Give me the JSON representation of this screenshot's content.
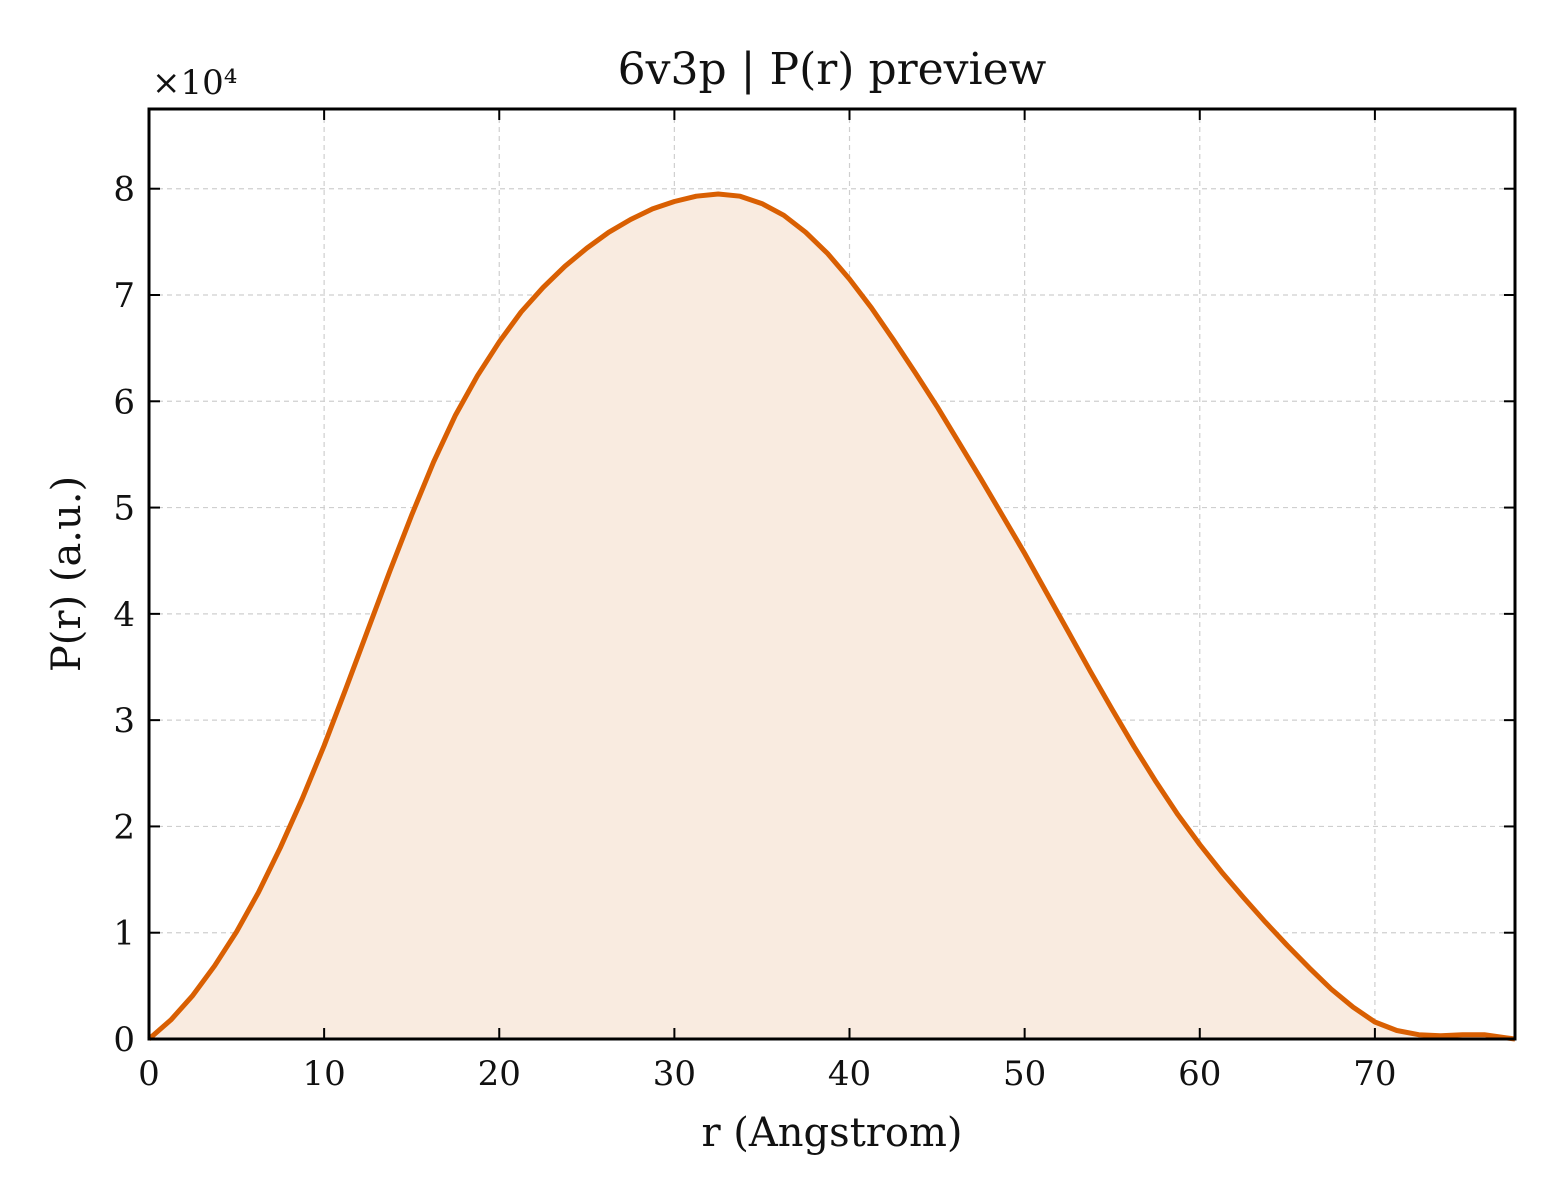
{
  "chart_data": {
    "type": "area",
    "title": "6v3p | P(r) preview",
    "xlabel": "r (Angstrom)",
    "ylabel": "P(r) (a.u.)",
    "y_offset_label": "×10⁴",
    "xlim": [
      0,
      78
    ],
    "ylim": [
      0,
      8.75
    ],
    "y_scale_exponent": 4,
    "xticks": [
      0,
      10,
      20,
      30,
      40,
      50,
      60,
      70
    ],
    "yticks": [
      0,
      1,
      2,
      3,
      4,
      5,
      6,
      7,
      8
    ],
    "grid": true,
    "line_color": "#d95f02",
    "fill_color": "#f9ebe0",
    "series": [
      {
        "x": [
          0,
          1.25,
          2.5,
          3.75,
          5,
          6.25,
          7.5,
          8.75,
          10,
          11.25,
          12.5,
          13.75,
          15,
          16.25,
          17.5,
          18.75,
          20,
          21.25,
          22.5,
          23.75,
          25,
          26.25,
          27.5,
          28.75,
          30,
          31.25,
          32.5,
          33.75,
          35,
          36.25,
          37.5,
          38.75,
          40,
          41.25,
          42.5,
          43.75,
          45,
          46.25,
          47.5,
          48.75,
          50,
          51.25,
          52.5,
          53.75,
          55,
          56.25,
          57.5,
          58.75,
          60,
          61.25,
          62.5,
          63.75,
          65,
          66.25,
          67.5,
          68.75,
          70,
          71.25,
          72.5,
          73.75,
          75,
          76.25,
          77.5,
          78
        ],
        "values": [
          0.0,
          0.18,
          0.41,
          0.69,
          1.01,
          1.38,
          1.8,
          2.26,
          2.76,
          3.3,
          3.85,
          4.4,
          4.93,
          5.43,
          5.87,
          6.24,
          6.56,
          6.84,
          7.07,
          7.27,
          7.44,
          7.59,
          7.71,
          7.81,
          7.88,
          7.93,
          7.95,
          7.93,
          7.86,
          7.75,
          7.59,
          7.39,
          7.15,
          6.88,
          6.58,
          6.27,
          5.95,
          5.61,
          5.27,
          4.92,
          4.57,
          4.2,
          3.83,
          3.46,
          3.1,
          2.75,
          2.42,
          2.11,
          1.83,
          1.57,
          1.33,
          1.1,
          0.88,
          0.67,
          0.47,
          0.3,
          0.16,
          0.08,
          0.04,
          0.03,
          0.04,
          0.04,
          0.01,
          0.0
        ]
      }
    ]
  }
}
